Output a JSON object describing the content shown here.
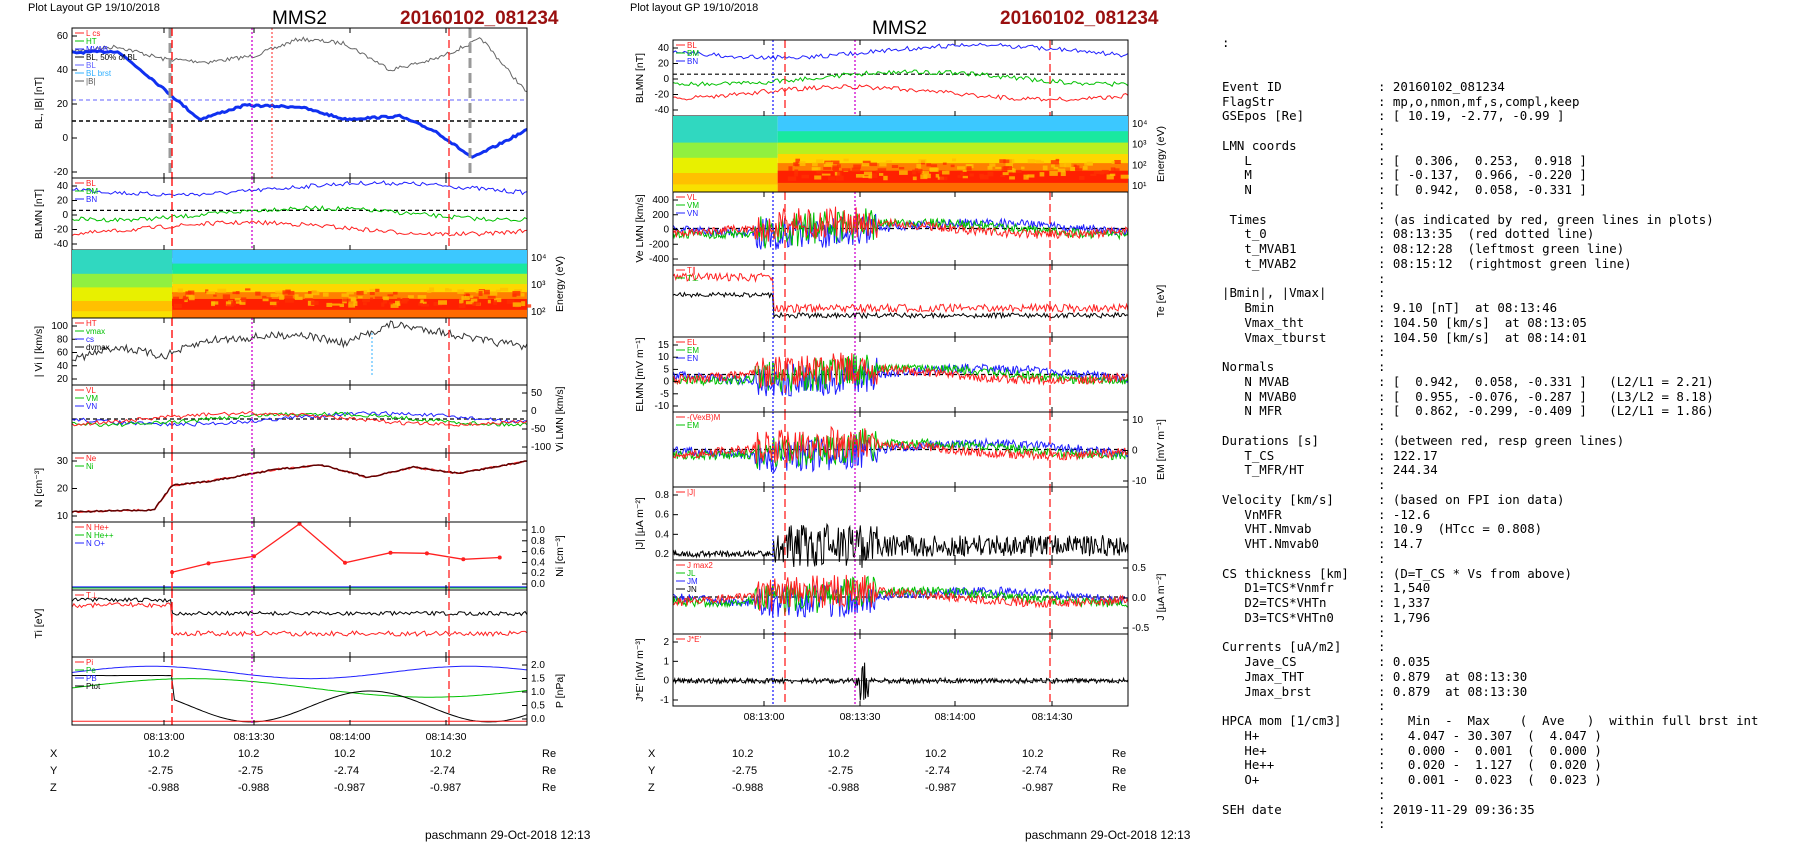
{
  "header": {
    "left_caption": "Plot Layout GP 19/10/2018",
    "mid_caption": "Plot layout GP 19/10/2018",
    "spacecraft": "MMS2",
    "event": "20160102_081234"
  },
  "footer": {
    "author": "paschmann 29-Oct-2018 12:13"
  },
  "colors": {
    "event_red": "#9a1010",
    "bx": "#2020ff",
    "by": "#00c000",
    "bz": "#ff2020",
    "black": "#000000",
    "magenta": "#d000d0"
  },
  "time_ticks": [
    "08:13:00",
    "08:13:30",
    "08:14:00",
    "08:14:30"
  ],
  "coords": {
    "labels": [
      "X",
      "Y",
      "Z"
    ],
    "unit": "Re",
    "rows": [
      [
        "10.2",
        "10.2",
        "10.2",
        "10.2"
      ],
      [
        "-2.75",
        "-2.75",
        "-2.74",
        "-2.74"
      ],
      [
        "-0.988",
        "-0.988",
        "-0.987",
        "-0.987"
      ]
    ]
  },
  "chart_data": [
    {
      "type": "line",
      "panel": "left-1",
      "ylabel": "BL, |B| [nT]",
      "ylim": [
        -35,
        62
      ],
      "yticks": [
        60,
        40,
        20,
        0,
        -20
      ],
      "legend": [
        "L cs",
        "HT",
        "MVAB",
        "BL, 50% of BL",
        "BL",
        "BL brst",
        "|B|"
      ],
      "series": [
        {
          "name": "|B|",
          "x": [
            0,
            0.1,
            0.2,
            0.3,
            0.4,
            0.5,
            0.6,
            0.7,
            0.8,
            0.9,
            1
          ],
          "y": [
            47,
            50,
            42,
            40,
            44,
            55,
            52,
            35,
            42,
            55,
            20
          ]
        },
        {
          "name": "BL",
          "x": [
            0,
            0.1,
            0.18,
            0.28,
            0.38,
            0.5,
            0.6,
            0.72,
            0.8,
            0.88,
            1
          ],
          "y": [
            46,
            47,
            28,
            3,
            12,
            11,
            3,
            5,
            -5,
            -22,
            -4
          ]
        }
      ]
    },
    {
      "type": "line",
      "panel": "left-2",
      "ylabel": "BLMN [nT]",
      "yticks": [
        40,
        20,
        0,
        -20,
        -40
      ],
      "legend": [
        "BL",
        "BM",
        "BN"
      ]
    },
    {
      "type": "heatmap",
      "panel": "left-3",
      "ylabel": "Energy (eV)",
      "yticks": [
        "10⁴",
        "10³",
        "10²"
      ]
    },
    {
      "type": "line",
      "panel": "left-4",
      "ylabel": "| Vi | [km/s]",
      "yticks": [
        100,
        80,
        60,
        40,
        20
      ],
      "legend": [
        "HT",
        "vmax",
        "cs",
        "dvmax"
      ]
    },
    {
      "type": "line",
      "panel": "left-5",
      "ylabel": "Vi LMN [km/s]",
      "yticks": [
        50,
        0,
        -50,
        -100
      ],
      "legend": [
        "VL",
        "VM",
        "VN"
      ]
    },
    {
      "type": "line",
      "panel": "left-6",
      "ylabel": "N [cm⁻³]",
      "yticks": [
        30,
        20,
        10
      ],
      "legend": [
        "Ne",
        "Ni"
      ]
    },
    {
      "type": "line",
      "panel": "left-7",
      "ylabel": "Ni [cm⁻³]",
      "yticks": [
        "1.0",
        "0.8",
        "0.6",
        "0.4",
        "0.2",
        "0.0"
      ],
      "legend": [
        "N He+",
        "N He++",
        "N O+"
      ],
      "series": [
        {
          "name": "N He++",
          "x": [
            0.22,
            0.3,
            0.4,
            0.5,
            0.6,
            0.7,
            0.78,
            0.86,
            0.94
          ],
          "y": [
            0.3,
            0.45,
            0.57,
            1.12,
            0.46,
            0.63,
            0.62,
            0.52,
            0.55
          ]
        }
      ]
    },
    {
      "type": "line",
      "panel": "left-8",
      "ylabel": "Ti [eV]",
      "legend": [
        "T⊥"
      ]
    },
    {
      "type": "line",
      "panel": "left-9",
      "ylabel": "P [nPa]",
      "yticks": [
        "2.0",
        "1.5",
        "1.0",
        "0.5",
        "0.0"
      ],
      "legend": [
        "Pi",
        "Pe",
        "PB",
        "Ptot"
      ]
    },
    {
      "type": "line",
      "panel": "mid-1",
      "ylabel": "BLMN [nT]",
      "yticks": [
        40,
        20,
        0,
        -20,
        -40
      ],
      "legend": [
        "BL",
        "BM",
        "BN"
      ]
    },
    {
      "type": "heatmap",
      "panel": "mid-2",
      "ylabel": "Energy (eV)",
      "yticks": [
        "10⁴",
        "10³",
        "10²",
        "10¹"
      ]
    },
    {
      "type": "line",
      "panel": "mid-3",
      "ylabel": "Ve LMN [km/s]",
      "yticks": [
        400,
        200,
        0,
        -200,
        -400
      ],
      "legend": [
        "VL",
        "VM",
        "VN"
      ]
    },
    {
      "type": "line",
      "panel": "mid-4",
      "ylabel": "Te [eV]",
      "legend": [
        "T∥",
        "T⊥"
      ]
    },
    {
      "type": "line",
      "panel": "mid-5",
      "ylabel": "ELMN [mV m⁻¹]",
      "yticks": [
        15,
        10,
        5,
        0,
        -5,
        -10
      ],
      "legend": [
        "EL",
        "EM",
        "EN"
      ]
    },
    {
      "type": "line",
      "panel": "mid-6",
      "ylabel": "EM [mV m⁻¹]",
      "yticks": [
        10,
        0,
        -10
      ],
      "legend": [
        "-(VexB)M",
        "EM"
      ]
    },
    {
      "type": "line",
      "panel": "mid-7",
      "ylabel": "|J| [µA m⁻²]",
      "yticks": [
        "0.8",
        "0.6",
        "0.4",
        "0.2"
      ],
      "legend": [
        "|J|"
      ]
    },
    {
      "type": "line",
      "panel": "mid-8",
      "ylabel": "J [µA m⁻²]",
      "yticks": [
        "0.5",
        "0.0",
        "-0.5"
      ],
      "legend": [
        "J max2",
        "JL",
        "JM",
        "JN"
      ]
    },
    {
      "type": "line",
      "panel": "mid-9",
      "ylabel": "J*E' [nW m⁻³]",
      "yticks": [
        2,
        1,
        0,
        -1
      ],
      "legend": [
        "J*E'"
      ]
    }
  ],
  "info": {
    "lead": ":",
    "rows": [
      [
        "Event ID",
        ": 20160102_081234"
      ],
      [
        "FlagStr",
        ": mp,o,nmon,mf,s,compl,keep"
      ],
      [
        "GSEpos [Re]",
        ": [ 10.19, -2.77, -0.99 ]"
      ],
      [
        "",
        ":"
      ],
      [
        "LMN coords",
        ":"
      ],
      [
        "   L",
        ": [  0.306,  0.253,  0.918 ]"
      ],
      [
        "   M",
        ": [ -0.137,  0.966, -0.220 ]"
      ],
      [
        "   N",
        ": [  0.942,  0.058, -0.331 ]"
      ],
      [
        "",
        ":"
      ],
      [
        " Times",
        ": (as indicated by red, green lines in plots)"
      ],
      [
        "   t_0",
        ": 08:13:35  (red dotted line)"
      ],
      [
        "   t_MVAB1",
        ": 08:12:28  (leftmost green line)"
      ],
      [
        "   t_MVAB2",
        ": 08:15:12  (rightmost green line)"
      ],
      [
        "",
        ":"
      ],
      [
        "|Bmin|, |Vmax|",
        ":"
      ],
      [
        "   Bmin",
        ": 9.10 [nT]  at 08:13:46"
      ],
      [
        "   Vmax_tht",
        ": 104.50 [km/s]  at 08:13:05"
      ],
      [
        "   Vmax_tburst",
        ": 104.50 [km/s]  at 08:14:01"
      ],
      [
        "",
        ":"
      ],
      [
        "Normals",
        ":"
      ],
      [
        "   N MVAB",
        ": [  0.942,  0.058, -0.331 ]   (L2/L1 = 2.21)"
      ],
      [
        "   N MVAB0",
        ": [  0.955, -0.076, -0.287 ]   (L3/L2 = 8.18)"
      ],
      [
        "   N MFR",
        ": [  0.862, -0.299, -0.409 ]   (L2/L1 = 1.86)"
      ],
      [
        "",
        ":"
      ],
      [
        "Durations [s]",
        ": (between red, resp green lines)"
      ],
      [
        "   T_CS",
        ": 122.17"
      ],
      [
        "   T_MFR/HT",
        ": 244.34"
      ],
      [
        "",
        ":"
      ],
      [
        "Velocity [km/s]",
        ": (based on FPI ion data)"
      ],
      [
        "   VnMFR",
        ": -12.6"
      ],
      [
        "   VHT.Nmvab",
        ": 10.9  (HTcc = 0.808)"
      ],
      [
        "   VHT.Nmvab0",
        ": 14.7"
      ],
      [
        "",
        ":"
      ],
      [
        "CS thickness [km]",
        ": (D=T_CS * Vs from above)"
      ],
      [
        "   D1=TCS*Vnmfr",
        ": 1,540"
      ],
      [
        "   D2=TCS*VHTn",
        ": 1,337"
      ],
      [
        "   D3=TCS*VHTn0",
        ": 1,796"
      ],
      [
        "",
        ":"
      ],
      [
        "Currents [uA/m2]",
        ":"
      ],
      [
        "   Jave_CS",
        ": 0.035"
      ],
      [
        "   Jmax_THT",
        ": 0.879  at 08:13:30"
      ],
      [
        "   Jmax_brst",
        ": 0.879  at 08:13:30"
      ],
      [
        "",
        ":"
      ],
      [
        "HPCA mom [1/cm3]",
        ":   Min  -  Max    (  Ave   )  within full brst int"
      ],
      [
        "   H+",
        ":   4.047 - 30.307  (  4.047 )"
      ],
      [
        "   He+",
        ":   0.000 -  0.001  (  0.000 )"
      ],
      [
        "   He++",
        ":   0.020 -  1.127  (  0.020 )"
      ],
      [
        "   O+",
        ":   0.001 -  0.023  (  0.023 )"
      ],
      [
        "",
        ":"
      ],
      [
        "SEH date",
        ": 2019-11-29 09:36:35"
      ],
      [
        "",
        ":"
      ]
    ]
  }
}
